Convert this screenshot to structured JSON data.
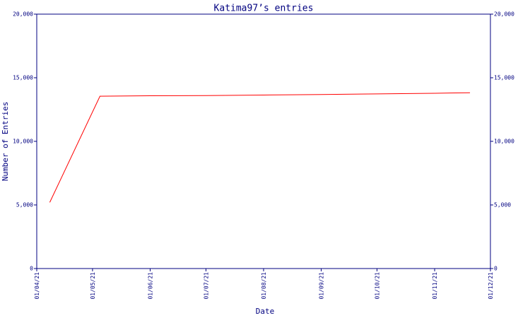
{
  "chart_data": {
    "type": "line",
    "title": "Katima97’s entries",
    "x_label": "Date",
    "y_label": "Number of Entries",
    "x": [
      "08/04/21",
      "05/05/21",
      "01/06/21",
      "01/07/21",
      "01/08/21",
      "01/09/21",
      "01/10/21",
      "01/11/21",
      "20/11/21"
    ],
    "series": [
      {
        "name": "Entries",
        "color": "#ff0000",
        "values": [
          5200,
          13550,
          13580,
          13600,
          13640,
          13680,
          13730,
          13780,
          13820
        ]
      }
    ],
    "xlim": [
      "01/04/21",
      "01/12/21"
    ],
    "xticks": [
      "01/04/21",
      "01/05/21",
      "01/06/21",
      "01/07/21",
      "01/08/21",
      "01/09/21",
      "01/10/21",
      "01/11/21",
      "01/12/21"
    ],
    "ylim": [
      0,
      20000
    ],
    "yticks": [
      0,
      {
        "value": 5000,
        "label": "5,000"
      },
      {
        "value": 10000,
        "label": "10,000"
      },
      {
        "value": 15000,
        "label": "15,000"
      },
      {
        "value": 20000,
        "label": "20,000"
      }
    ],
    "axis_color": "#000080",
    "grid": false
  }
}
